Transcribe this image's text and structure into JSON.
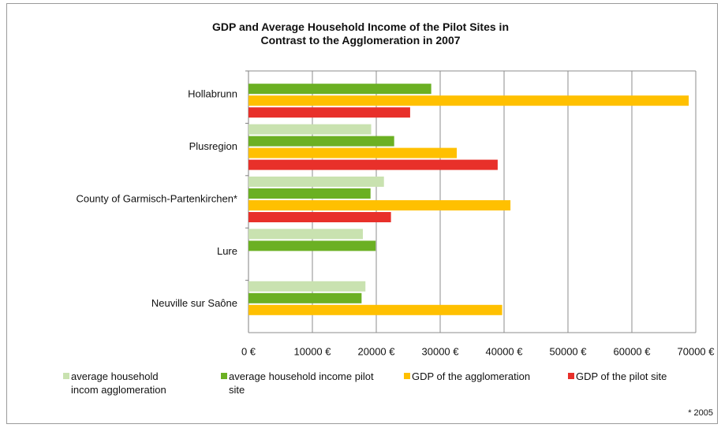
{
  "chart_data": {
    "type": "barh",
    "title": "GDP and Average Household Income of the Pilot Sites in Contrast to the Agglomeration in 2007",
    "categories": [
      "Hollabrunn",
      "Plusregion",
      "County of Garmisch-Partenkirchen*",
      "Lure",
      "Neuville sur Saône"
    ],
    "series": [
      {
        "name": "average household incom agglomeration",
        "color": "#c9e2b0",
        "values": [
          null,
          19200,
          21200,
          17900,
          18300
        ]
      },
      {
        "name": "average household income pilot site",
        "color": "#6bb023",
        "values": [
          28600,
          22800,
          19100,
          19900,
          17700
        ]
      },
      {
        "name": "GDP of the agglomeration",
        "color": "#ffc000",
        "values": [
          68900,
          32600,
          41000,
          null,
          39700
        ]
      },
      {
        "name": "GDP of the pilot site",
        "color": "#e8302a",
        "values": [
          25300,
          39000,
          22300,
          null,
          null
        ]
      }
    ],
    "xlim": [
      0,
      70000
    ],
    "xticks": [
      {
        "value": 0,
        "label": "0 €"
      },
      {
        "value": 10000,
        "label": "10000 €"
      },
      {
        "value": 20000,
        "label": "20000 €"
      },
      {
        "value": 30000,
        "label": "30000 €"
      },
      {
        "value": 40000,
        "label": "40000 €"
      },
      {
        "value": 50000,
        "label": "50000 €"
      },
      {
        "value": 60000,
        "label": "60000 €"
      },
      {
        "value": 70000,
        "label": "70000 €"
      }
    ],
    "grid": true,
    "legend": "bottom",
    "footnote": "* 2005"
  }
}
